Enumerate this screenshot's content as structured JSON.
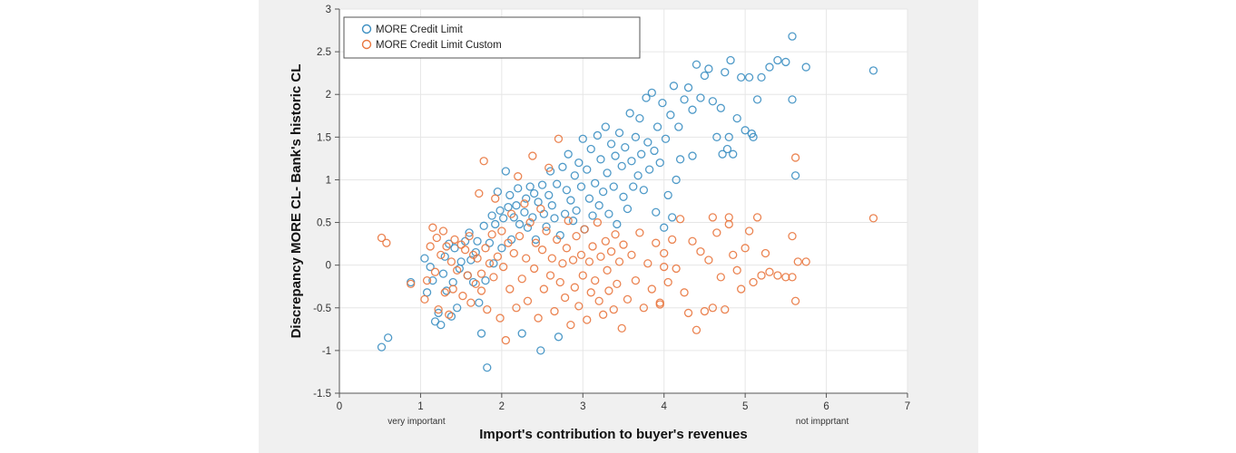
{
  "chart_data": {
    "type": "scatter",
    "title": "",
    "xlabel": "Import's  contribution to buyer's revenues",
    "ylabel": "Discrepancy MORE CL- Bank's historic CL",
    "xlim": [
      0,
      7
    ],
    "ylim": [
      -1.5,
      3
    ],
    "x_ticks": [
      "0",
      "1",
      "2",
      "3",
      "4",
      "5",
      "6",
      "7"
    ],
    "y_ticks": [
      "-1.5",
      "-1",
      "-0.5",
      "0",
      "0.5",
      "1",
      "1.5",
      "2",
      "2.5",
      "3"
    ],
    "x_annotations": [
      {
        "x": 0.95,
        "text": "very important"
      },
      {
        "x": 5.95,
        "text": "not impprtant"
      }
    ],
    "grid": true,
    "legend_position": "top-left",
    "series": [
      {
        "name": "MORE Credit Limit",
        "color": "#3c8fc2",
        "marker": "hollow-circle",
        "points": [
          [
            0.52,
            -0.96
          ],
          [
            0.6,
            -0.85
          ],
          [
            0.88,
            -0.2
          ],
          [
            1.05,
            0.08
          ],
          [
            1.08,
            -0.32
          ],
          [
            1.12,
            -0.02
          ],
          [
            1.15,
            -0.18
          ],
          [
            1.18,
            -0.66
          ],
          [
            1.22,
            -0.56
          ],
          [
            1.25,
            -0.7
          ],
          [
            1.28,
            -0.1
          ],
          [
            1.3,
            0.1
          ],
          [
            1.32,
            -0.3
          ],
          [
            1.35,
            0.25
          ],
          [
            1.38,
            -0.6
          ],
          [
            1.4,
            -0.2
          ],
          [
            1.42,
            0.2
          ],
          [
            1.45,
            -0.5
          ],
          [
            1.48,
            -0.04
          ],
          [
            1.5,
            0.04
          ],
          [
            1.55,
            0.28
          ],
          [
            1.58,
            -0.12
          ],
          [
            1.6,
            0.38
          ],
          [
            1.62,
            0.06
          ],
          [
            1.65,
            -0.2
          ],
          [
            1.68,
            0.15
          ],
          [
            1.7,
            0.28
          ],
          [
            1.72,
            -0.44
          ],
          [
            1.75,
            -0.8
          ],
          [
            1.78,
            0.46
          ],
          [
            1.8,
            -0.18
          ],
          [
            1.82,
            -1.2
          ],
          [
            1.85,
            0.26
          ],
          [
            1.88,
            0.58
          ],
          [
            1.9,
            0.02
          ],
          [
            1.92,
            0.48
          ],
          [
            1.95,
            0.86
          ],
          [
            1.98,
            0.64
          ],
          [
            2.0,
            0.2
          ],
          [
            2.02,
            0.55
          ],
          [
            2.05,
            1.1
          ],
          [
            2.08,
            0.68
          ],
          [
            2.1,
            0.82
          ],
          [
            2.12,
            0.3
          ],
          [
            2.15,
            0.56
          ],
          [
            2.18,
            0.7
          ],
          [
            2.2,
            0.9
          ],
          [
            2.22,
            0.48
          ],
          [
            2.25,
            -0.8
          ],
          [
            2.28,
            0.62
          ],
          [
            2.3,
            0.78
          ],
          [
            2.32,
            0.44
          ],
          [
            2.35,
            0.92
          ],
          [
            2.38,
            0.56
          ],
          [
            2.4,
            0.84
          ],
          [
            2.42,
            0.3
          ],
          [
            2.45,
            0.74
          ],
          [
            2.48,
            -1.0
          ],
          [
            2.5,
            0.94
          ],
          [
            2.52,
            0.6
          ],
          [
            2.55,
            0.45
          ],
          [
            2.58,
            0.82
          ],
          [
            2.6,
            1.1
          ],
          [
            2.62,
            0.7
          ],
          [
            2.65,
            0.55
          ],
          [
            2.68,
            0.95
          ],
          [
            2.7,
            -0.84
          ],
          [
            2.72,
            0.35
          ],
          [
            2.75,
            1.15
          ],
          [
            2.78,
            0.6
          ],
          [
            2.8,
            0.88
          ],
          [
            2.82,
            1.3
          ],
          [
            2.85,
            0.76
          ],
          [
            2.88,
            0.52
          ],
          [
            2.9,
            1.05
          ],
          [
            2.92,
            0.64
          ],
          [
            2.95,
            1.2
          ],
          [
            2.98,
            0.92
          ],
          [
            3.0,
            1.48
          ],
          [
            3.02,
            0.42
          ],
          [
            3.05,
            1.12
          ],
          [
            3.08,
            0.78
          ],
          [
            3.1,
            1.36
          ],
          [
            3.12,
            0.58
          ],
          [
            3.15,
            0.96
          ],
          [
            3.18,
            1.52
          ],
          [
            3.2,
            0.7
          ],
          [
            3.22,
            1.24
          ],
          [
            3.25,
            0.86
          ],
          [
            3.28,
            1.62
          ],
          [
            3.3,
            1.08
          ],
          [
            3.32,
            0.6
          ],
          [
            3.35,
            1.42
          ],
          [
            3.38,
            0.92
          ],
          [
            3.4,
            1.28
          ],
          [
            3.42,
            0.48
          ],
          [
            3.45,
            1.55
          ],
          [
            3.48,
            1.16
          ],
          [
            3.5,
            0.8
          ],
          [
            3.52,
            1.38
          ],
          [
            3.55,
            0.66
          ],
          [
            3.58,
            1.78
          ],
          [
            3.6,
            1.22
          ],
          [
            3.62,
            0.92
          ],
          [
            3.65,
            1.5
          ],
          [
            3.68,
            1.05
          ],
          [
            3.7,
            1.72
          ],
          [
            3.72,
            1.3
          ],
          [
            3.75,
            0.88
          ],
          [
            3.78,
            1.96
          ],
          [
            3.8,
            1.44
          ],
          [
            3.82,
            1.12
          ],
          [
            3.85,
            2.02
          ],
          [
            3.88,
            1.34
          ],
          [
            3.9,
            0.62
          ],
          [
            3.92,
            1.62
          ],
          [
            3.95,
            1.2
          ],
          [
            3.98,
            1.9
          ],
          [
            4.0,
            0.44
          ],
          [
            4.02,
            1.48
          ],
          [
            4.05,
            0.82
          ],
          [
            4.08,
            1.76
          ],
          [
            4.1,
            0.56
          ],
          [
            4.12,
            2.1
          ],
          [
            4.15,
            1.0
          ],
          [
            4.18,
            1.62
          ],
          [
            4.2,
            1.24
          ],
          [
            4.25,
            1.94
          ],
          [
            4.3,
            2.08
          ],
          [
            4.35,
            1.82
          ],
          [
            4.4,
            2.35
          ],
          [
            4.45,
            1.96
          ],
          [
            4.5,
            2.22
          ],
          [
            4.55,
            2.3
          ],
          [
            4.6,
            1.92
          ],
          [
            4.65,
            1.5
          ],
          [
            4.7,
            1.84
          ],
          [
            4.75,
            2.26
          ],
          [
            4.8,
            1.5
          ],
          [
            4.82,
            2.4
          ],
          [
            4.85,
            1.3
          ],
          [
            4.9,
            1.72
          ],
          [
            4.95,
            2.2
          ],
          [
            5.0,
            1.58
          ],
          [
            5.05,
            2.2
          ],
          [
            5.1,
            1.5
          ],
          [
            5.15,
            1.94
          ],
          [
            5.2,
            2.2
          ],
          [
            5.3,
            2.32
          ],
          [
            5.4,
            2.4
          ],
          [
            5.5,
            2.38
          ],
          [
            5.58,
            2.68
          ],
          [
            5.62,
            1.05
          ],
          [
            5.75,
            2.32
          ],
          [
            6.58,
            2.28
          ],
          [
            5.58,
            1.94
          ],
          [
            5.08,
            1.54
          ],
          [
            4.78,
            1.36
          ],
          [
            4.72,
            1.3
          ],
          [
            4.35,
            1.28
          ]
        ]
      },
      {
        "name": "MORE Credit Limit Custom",
        "color": "#e9773f",
        "marker": "hollow-circle",
        "points": [
          [
            0.52,
            0.32
          ],
          [
            0.58,
            0.26
          ],
          [
            0.88,
            -0.22
          ],
          [
            1.05,
            -0.4
          ],
          [
            1.08,
            -0.18
          ],
          [
            1.12,
            0.22
          ],
          [
            1.15,
            0.44
          ],
          [
            1.18,
            -0.08
          ],
          [
            1.2,
            0.32
          ],
          [
            1.22,
            -0.52
          ],
          [
            1.25,
            0.12
          ],
          [
            1.28,
            0.4
          ],
          [
            1.3,
            -0.32
          ],
          [
            1.32,
            0.22
          ],
          [
            1.35,
            -0.58
          ],
          [
            1.38,
            0.04
          ],
          [
            1.4,
            -0.28
          ],
          [
            1.42,
            0.3
          ],
          [
            1.45,
            -0.06
          ],
          [
            1.5,
            0.24
          ],
          [
            1.52,
            -0.36
          ],
          [
            1.55,
            0.18
          ],
          [
            1.58,
            -0.12
          ],
          [
            1.6,
            0.34
          ],
          [
            1.62,
            -0.44
          ],
          [
            1.65,
            0.12
          ],
          [
            1.68,
            -0.22
          ],
          [
            1.7,
            0.08
          ],
          [
            1.72,
            0.84
          ],
          [
            1.75,
            -0.3
          ],
          [
            1.78,
            1.22
          ],
          [
            1.8,
            0.2
          ],
          [
            1.82,
            -0.52
          ],
          [
            1.85,
            0.02
          ],
          [
            1.88,
            0.36
          ],
          [
            1.9,
            -0.14
          ],
          [
            1.92,
            0.78
          ],
          [
            1.95,
            0.1
          ],
          [
            1.98,
            -0.62
          ],
          [
            2.0,
            0.4
          ],
          [
            2.02,
            -0.02
          ],
          [
            2.05,
            -0.88
          ],
          [
            2.08,
            0.26
          ],
          [
            2.1,
            -0.28
          ],
          [
            2.12,
            0.6
          ],
          [
            2.15,
            0.14
          ],
          [
            2.18,
            -0.5
          ],
          [
            2.2,
            1.04
          ],
          [
            2.22,
            0.34
          ],
          [
            2.25,
            -0.16
          ],
          [
            2.28,
            0.72
          ],
          [
            2.3,
            0.08
          ],
          [
            2.32,
            -0.42
          ],
          [
            2.35,
            0.5
          ],
          [
            2.38,
            1.28
          ],
          [
            2.4,
            -0.04
          ],
          [
            2.42,
            0.26
          ],
          [
            2.45,
            -0.62
          ],
          [
            2.48,
            0.66
          ],
          [
            2.5,
            0.18
          ],
          [
            2.52,
            -0.28
          ],
          [
            2.55,
            0.4
          ],
          [
            2.58,
            1.14
          ],
          [
            2.6,
            -0.12
          ],
          [
            2.62,
            0.08
          ],
          [
            2.65,
            -0.54
          ],
          [
            2.68,
            0.3
          ],
          [
            2.7,
            1.48
          ],
          [
            2.72,
            -0.2
          ],
          [
            2.75,
            0.02
          ],
          [
            2.78,
            -0.38
          ],
          [
            2.8,
            0.2
          ],
          [
            2.82,
            0.52
          ],
          [
            2.85,
            -0.7
          ],
          [
            2.88,
            0.06
          ],
          [
            2.9,
            -0.26
          ],
          [
            2.92,
            0.34
          ],
          [
            2.95,
            -0.48
          ],
          [
            2.98,
            0.12
          ],
          [
            3.0,
            -0.12
          ],
          [
            3.02,
            0.42
          ],
          [
            3.05,
            -0.64
          ],
          [
            3.08,
            0.04
          ],
          [
            3.1,
            -0.32
          ],
          [
            3.12,
            0.22
          ],
          [
            3.15,
            -0.18
          ],
          [
            3.18,
            0.5
          ],
          [
            3.2,
            -0.42
          ],
          [
            3.22,
            0.1
          ],
          [
            3.25,
            -0.58
          ],
          [
            3.28,
            0.28
          ],
          [
            3.3,
            -0.06
          ],
          [
            3.32,
            -0.3
          ],
          [
            3.35,
            0.16
          ],
          [
            3.38,
            -0.52
          ],
          [
            3.4,
            0.36
          ],
          [
            3.42,
            -0.22
          ],
          [
            3.45,
            0.04
          ],
          [
            3.48,
            -0.74
          ],
          [
            3.5,
            0.24
          ],
          [
            3.55,
            -0.4
          ],
          [
            3.6,
            0.12
          ],
          [
            3.65,
            -0.18
          ],
          [
            3.7,
            0.38
          ],
          [
            3.75,
            -0.5
          ],
          [
            3.8,
            0.02
          ],
          [
            3.85,
            -0.28
          ],
          [
            3.9,
            0.26
          ],
          [
            3.95,
            -0.46
          ],
          [
            4.0,
            0.14
          ],
          [
            4.05,
            -0.2
          ],
          [
            4.1,
            0.3
          ],
          [
            4.15,
            -0.04
          ],
          [
            4.2,
            0.54
          ],
          [
            4.25,
            -0.32
          ],
          [
            4.3,
            -0.56
          ],
          [
            4.35,
            0.28
          ],
          [
            4.4,
            -0.76
          ],
          [
            4.45,
            0.16
          ],
          [
            4.5,
            -0.54
          ],
          [
            4.55,
            0.06
          ],
          [
            4.6,
            -0.5
          ],
          [
            4.65,
            0.38
          ],
          [
            4.7,
            -0.14
          ],
          [
            4.75,
            -0.52
          ],
          [
            4.8,
            0.48
          ],
          [
            4.85,
            0.12
          ],
          [
            4.9,
            -0.06
          ],
          [
            4.95,
            -0.28
          ],
          [
            5.0,
            0.2
          ],
          [
            5.05,
            0.4
          ],
          [
            5.1,
            -0.2
          ],
          [
            5.15,
            0.56
          ],
          [
            5.2,
            -0.12
          ],
          [
            5.25,
            0.14
          ],
          [
            5.3,
            -0.08
          ],
          [
            5.4,
            -0.12
          ],
          [
            5.5,
            -0.14
          ],
          [
            5.58,
            0.34
          ],
          [
            5.62,
            -0.42
          ],
          [
            5.65,
            0.04
          ],
          [
            5.75,
            0.04
          ],
          [
            5.58,
            -0.14
          ],
          [
            6.58,
            0.55
          ],
          [
            5.62,
            1.26
          ],
          [
            4.8,
            0.56
          ],
          [
            4.6,
            0.56
          ],
          [
            4.0,
            -0.02
          ],
          [
            3.95,
            -0.44
          ],
          [
            1.75,
            -0.1
          ]
        ]
      }
    ]
  }
}
